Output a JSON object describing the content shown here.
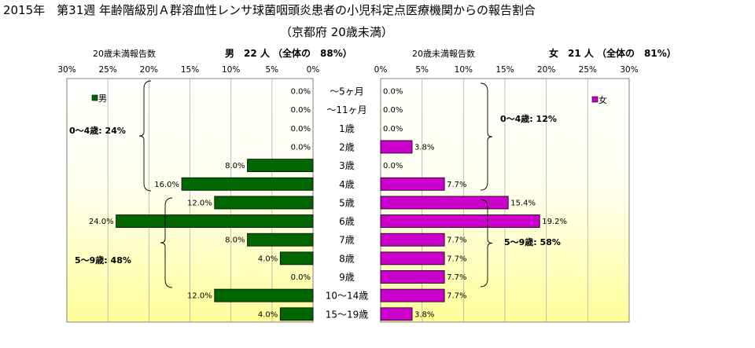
{
  "title": "2015年　第31週 年齢階級別Ａ群溶血性レンサ球菌咽頭炎患者の小児科定点医療機関からの報告割合",
  "subtitle": "（京都府 20歳未満）",
  "colors": {
    "male": "#006600",
    "female": "#cc00cc",
    "bg_top": "#ffffff",
    "bg_bottom": "#ffff99"
  },
  "chart_data": {
    "type": "bar",
    "orientation": "horizontal",
    "categories": [
      "～5ヶ月",
      "～11ヶ月",
      "1歳",
      "2歳",
      "3歳",
      "4歳",
      "5歳",
      "6歳",
      "7歳",
      "8歳",
      "9歳",
      "10～14歳",
      "15～19歳"
    ],
    "xlim": [
      0,
      30
    ],
    "ticks": [
      "30%",
      "25%",
      "20%",
      "15%",
      "10%",
      "5%",
      "0%"
    ],
    "ticks_right": [
      "0%",
      "5%",
      "10%",
      "15%",
      "20%",
      "25%",
      "30%"
    ],
    "series": [
      {
        "name": "男",
        "header_left": "20歳未満報告数",
        "header_right": "男　22 人 （全体の　88%）",
        "values": [
          0,
          0,
          0,
          0,
          8,
          16,
          12,
          24,
          8,
          4,
          0,
          12,
          4
        ],
        "labels": [
          "0.0%",
          "0.0%",
          "0.0%",
          "0.0%",
          "8.0%",
          "16.0%",
          "12.0%",
          "24.0%",
          "8.0%",
          "4.0%",
          "0.0%",
          "12.0%",
          "4.0%"
        ],
        "groups": [
          {
            "label": "0～4歳: 24%",
            "from": 0,
            "to": 5
          },
          {
            "label": "5～9歳: 48%",
            "from": 6,
            "to": 10
          }
        ]
      },
      {
        "name": "女",
        "header_left": "20歳未満報告数",
        "header_right": "女　21 人 （全体の　81%）",
        "values": [
          0,
          0,
          0,
          3.8,
          0,
          7.7,
          15.4,
          19.2,
          7.7,
          7.7,
          7.7,
          7.7,
          3.8
        ],
        "labels": [
          "0.0%",
          "0.0%",
          "0.0%",
          "3.8%",
          "0.0%",
          "7.7%",
          "15.4%",
          "19.2%",
          "7.7%",
          "7.7%",
          "7.7%",
          "7.7%",
          "3.8%"
        ],
        "groups": [
          {
            "label": "0～4歳: 12%",
            "from": 0,
            "to": 5
          },
          {
            "label": "5～9歳: 58%",
            "from": 6,
            "to": 10
          }
        ]
      }
    ]
  }
}
